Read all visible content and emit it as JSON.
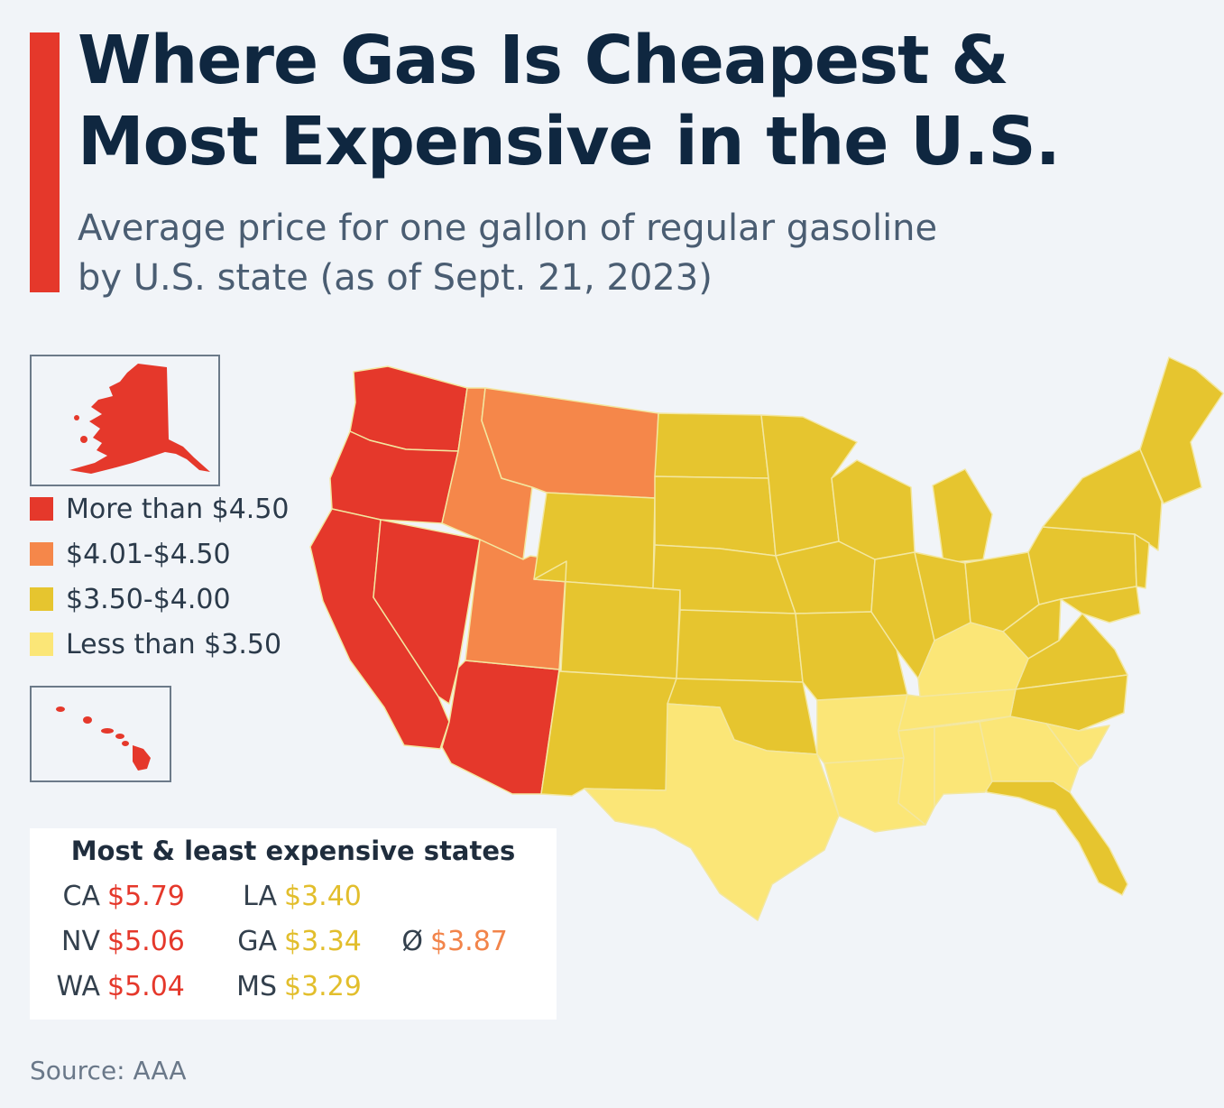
{
  "header": {
    "title_line1": "Where Gas Is Cheapest &",
    "title_line2": "Most Expensive in the U.S.",
    "subtitle_line1": "Average price for one gallon of regular gasoline",
    "subtitle_line2": "by U.S. state (as of Sept. 21, 2023)"
  },
  "colors": {
    "accent": "#e5382b",
    "more_than_450": "#e5382b",
    "range_401_450": "#f5874a",
    "range_350_400": "#e6c52f",
    "less_than_350": "#fbe677",
    "title": "#0f2740"
  },
  "legend": [
    {
      "label": "More than $4.50",
      "color": "#e5382b"
    },
    {
      "label": "$4.01-$4.50",
      "color": "#f5874a"
    },
    {
      "label": "$3.50-$4.00",
      "color": "#e6c52f"
    },
    {
      "label": "Less than $3.50",
      "color": "#fbe677"
    }
  ],
  "insets": {
    "alaska": {
      "category": "More than $4.50"
    },
    "hawaii": {
      "category": "More than $4.50"
    }
  },
  "rankings": {
    "heading": "Most & least expensive states",
    "most_expensive": [
      {
        "state": "CA",
        "price": "$5.79"
      },
      {
        "state": "NV",
        "price": "$5.06"
      },
      {
        "state": "WA",
        "price": "$5.04"
      }
    ],
    "least_expensive": [
      {
        "state": "LA",
        "price": "$3.40"
      },
      {
        "state": "GA",
        "price": "$3.34"
      },
      {
        "state": "MS",
        "price": "$3.29"
      }
    ],
    "average": {
      "symbol": "Ø",
      "price": "$3.87"
    }
  },
  "source": "Source: AAA"
}
